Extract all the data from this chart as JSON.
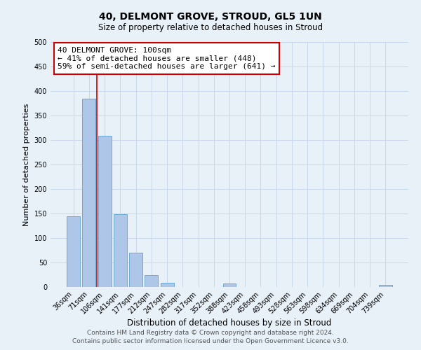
{
  "title": "40, DELMONT GROVE, STROUD, GL5 1UN",
  "subtitle": "Size of property relative to detached houses in Stroud",
  "xlabel": "Distribution of detached houses by size in Stroud",
  "ylabel": "Number of detached properties",
  "footnote1": "Contains HM Land Registry data © Crown copyright and database right 2024.",
  "footnote2": "Contains public sector information licensed under the Open Government Licence v3.0.",
  "bar_labels": [
    "36sqm",
    "71sqm",
    "106sqm",
    "141sqm",
    "177sqm",
    "212sqm",
    "247sqm",
    "282sqm",
    "317sqm",
    "352sqm",
    "388sqm",
    "423sqm",
    "458sqm",
    "493sqm",
    "528sqm",
    "563sqm",
    "598sqm",
    "634sqm",
    "669sqm",
    "704sqm",
    "739sqm"
  ],
  "bar_heights": [
    144,
    384,
    309,
    149,
    70,
    24,
    9,
    0,
    0,
    0,
    7,
    0,
    0,
    0,
    0,
    0,
    0,
    0,
    0,
    0,
    4
  ],
  "bar_color": "#aec6e8",
  "bar_edge_color": "#6aaad4",
  "grid_color": "#c8d8ea",
  "background_color": "#e8f0f8",
  "vline_color": "#cc0000",
  "annotation_text": "40 DELMONT GROVE: 100sqm\n← 41% of detached houses are smaller (448)\n59% of semi-detached houses are larger (641) →",
  "annotation_box_color": "#cc0000",
  "ylim": [
    0,
    500
  ],
  "yticks": [
    0,
    50,
    100,
    150,
    200,
    250,
    300,
    350,
    400,
    450,
    500
  ]
}
